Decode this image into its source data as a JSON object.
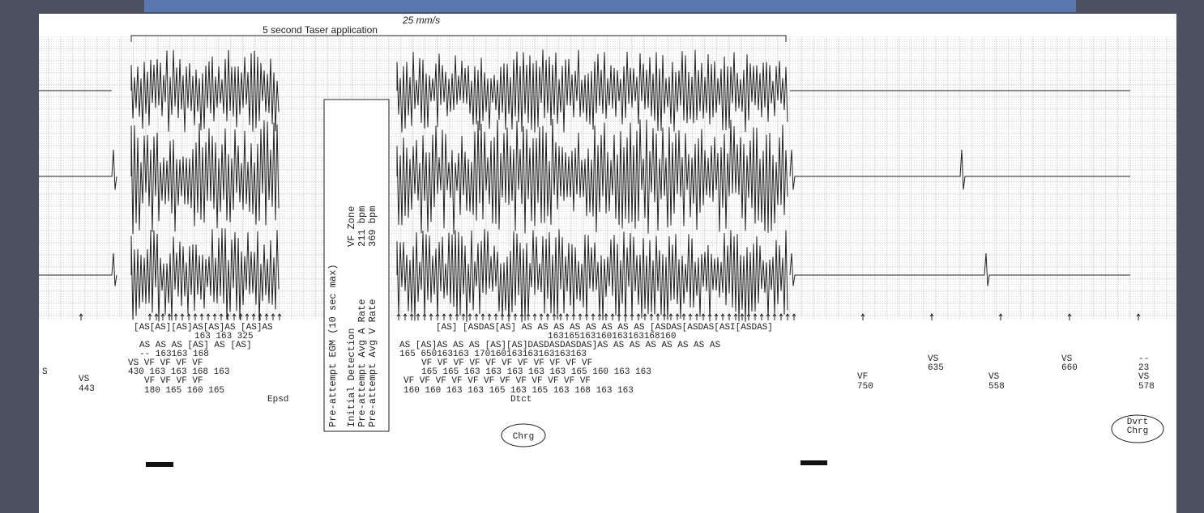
{
  "header": {
    "bracket_label": "5 second Taser application",
    "paper_speed": "25 mm/s"
  },
  "info_box": {
    "title": "Pre-attempt EGM (10 sec max)",
    "rows": [
      [
        "Initial Detection",
        "VF Zone"
      ],
      [
        "Pre-attempt Avg A Rate",
        "211 bpm"
      ],
      [
        "Pre-attempt Avg V Rate",
        "369 bpm"
      ]
    ]
  },
  "markers": [
    "S",
    "VS",
    "443",
    "[AS[AS][AS]AS[AS]AS  [AS]AS",
    "163 163      325",
    "AS AS AS [AS] AS  [AS]",
    "-- 163163     168",
    "VS   VF   VF   VF   VF",
    "430  163  163  168  163",
    "VF   VF   VF   VF",
    "180  165  160  165",
    "Epsd",
    "[AS]  [ASDAS[AS] AS AS AS AS AS AS AS AS  [ASDAS[ASDAS[ASI[ASDAS]",
    "163165163160163163168160",
    "AS   [AS]AS AS AS  [AS][AS]DASDASDASDAS]AS AS AS AS AS AS AS AS",
    "165    650163163                 170160163163163163163",
    "VF   VF   VF   VF   VF   VF   VF   VF   VF   VF   VF",
    "165  165  163  163  163  163  163  165  160  163  163",
    "VF   VF   VF   VF   VF   VF   VF   VF   VF   VF   VF   VF",
    "160  160  163  163  165  163  165  163  168  163  163",
    "Dtct",
    "VF",
    "750",
    "VS",
    "635",
    "VS",
    "558",
    "VS",
    "660",
    "--",
    "23",
    "VS",
    "578"
  ],
  "circled": [
    [
      "Chrg"
    ],
    [
      "Dvrt",
      "Chrg"
    ]
  ]
}
